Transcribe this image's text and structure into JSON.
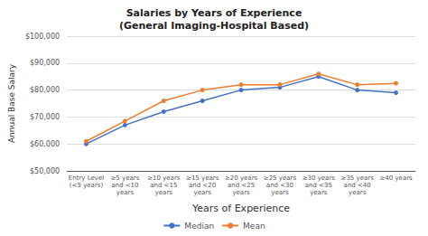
{
  "chart_data": {
    "type": "line",
    "title": "Salaries by Years of Experience\n(General Imaging-Hospital Based)",
    "xlabel": "Years of Experience",
    "ylabel": "Annual Base Salary",
    "categories": [
      "Entry Level\n(<5 years)",
      "≥5 years\nand <10\nyears",
      "≥10 years\nand <15\nyears",
      "≥15 years\nand <20\nyears",
      "≥20 years\nand <25\nyears",
      "≥25 years\nand <30\nyears",
      "≥30 years\nand <35\nyears",
      "≥35 years\nand <40\nyears",
      "≥40 years"
    ],
    "series": [
      {
        "name": "Median",
        "color": "#4472C4",
        "marker": "circle",
        "values": [
          60000,
          67000,
          72000,
          76000,
          80000,
          81000,
          85000,
          80000,
          79000
        ]
      },
      {
        "name": "Mean",
        "color": "#ED7D31",
        "marker": "circle",
        "values": [
          61000,
          68500,
          76000,
          80000,
          82000,
          82000,
          86000,
          82000,
          82500
        ]
      }
    ],
    "ylim": [
      50000,
      100000
    ],
    "yticks": [
      {
        "value": 50000,
        "label": "$50,000"
      },
      {
        "value": 60000,
        "label": "$60,000"
      },
      {
        "value": 70000,
        "label": "$70,000"
      },
      {
        "value": 80000,
        "label": "$80,000"
      },
      {
        "value": 90000,
        "label": "$90,000"
      },
      {
        "value": 100000,
        "label": "$100,000"
      }
    ],
    "grid": true,
    "legend": "bottom"
  }
}
